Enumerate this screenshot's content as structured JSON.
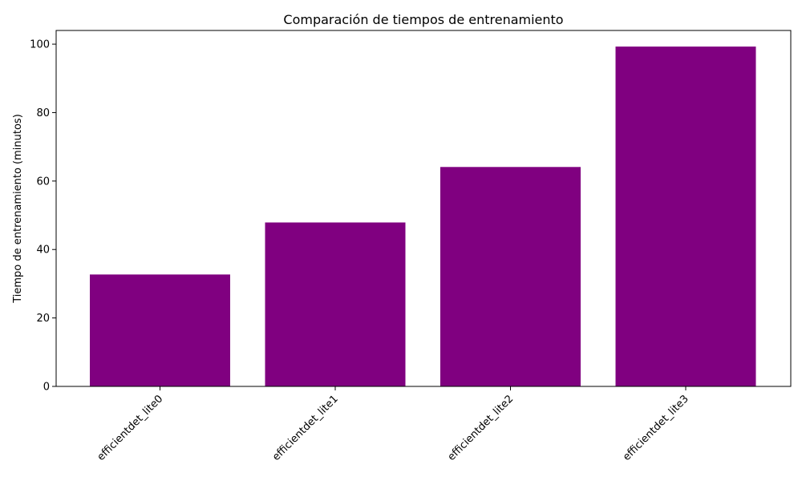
{
  "chart_data": {
    "type": "bar",
    "title": "Comparación de tiempos de entrenamiento",
    "xlabel": "",
    "ylabel": "Tiempo de entrenamiento (minutos)",
    "categories": [
      "efficientdet_lite0",
      "efficientdet_lite1",
      "efficientdet_lite2",
      "efficientdet_lite3"
    ],
    "values": [
      32.7,
      47.9,
      64.1,
      99.3
    ],
    "ylim": [
      0,
      104
    ],
    "yticks": [
      0,
      20,
      40,
      60,
      80,
      100
    ],
    "bar_color": "#800080",
    "grid": false,
    "x_tick_rotation": "45 degrees"
  }
}
